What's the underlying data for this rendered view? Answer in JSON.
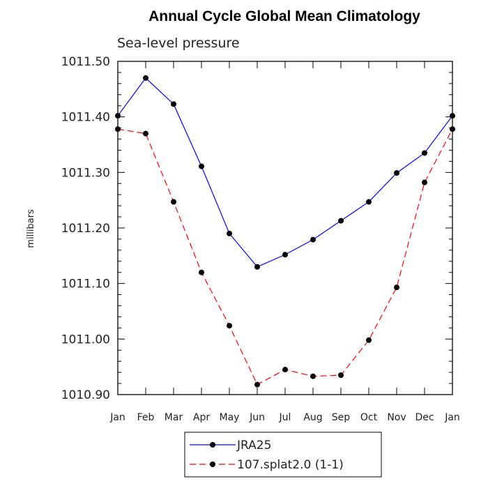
{
  "chart_data": {
    "type": "line",
    "title": "Annual Cycle Global Mean Climatology",
    "subtitle": "Sea-level pressure",
    "ylabel": "millibars",
    "xlabel": "",
    "categories": [
      "Jan",
      "Feb",
      "Mar",
      "Apr",
      "May",
      "Jun",
      "Jul",
      "Aug",
      "Sep",
      "Oct",
      "Nov",
      "Dec",
      "Jan"
    ],
    "ylim": [
      1010.9,
      1011.5
    ],
    "yticks": [
      "1010.90",
      "1011.00",
      "1011.10",
      "1011.20",
      "1011.30",
      "1011.40",
      "1011.50"
    ],
    "series": [
      {
        "name": "JRA25",
        "color": "#0000ff",
        "dashed": false,
        "values": [
          1011.402,
          1011.47,
          1011.423,
          1011.311,
          1011.19,
          1011.13,
          1011.152,
          1011.179,
          1011.213,
          1011.247,
          1011.299,
          1011.335,
          1011.402
        ]
      },
      {
        "name": "107.splat2.0 (1-1)",
        "color": "#ff0000",
        "dashed": true,
        "values": [
          1011.378,
          1011.37,
          1011.247,
          1011.12,
          1011.024,
          1010.918,
          1010.945,
          1010.933,
          1010.935,
          1010.998,
          1011.093,
          1011.282,
          1011.378
        ]
      }
    ],
    "legend_position": "bottom"
  }
}
